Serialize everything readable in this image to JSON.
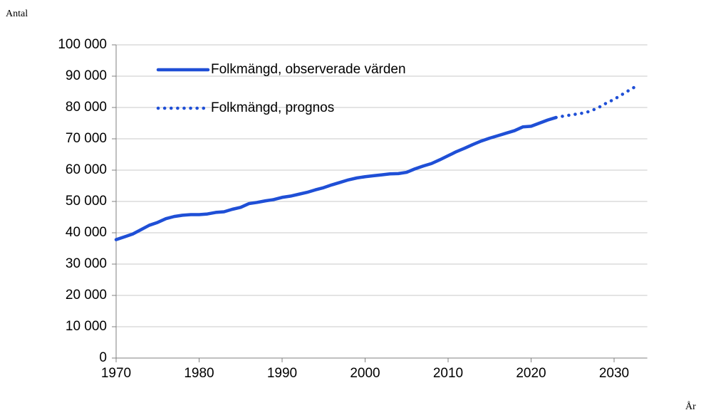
{
  "chart_data": {
    "type": "line",
    "ylabel": "Antal",
    "xlabel": "År",
    "xlim": [
      1970,
      2034
    ],
    "xticks": [
      1970,
      1980,
      1990,
      2000,
      2010,
      2020,
      2030
    ],
    "ylim": [
      0,
      100000
    ],
    "yticks": [
      {
        "value": 0,
        "label": "0"
      },
      {
        "value": 10000,
        "label": "10 000"
      },
      {
        "value": 20000,
        "label": "20 000"
      },
      {
        "value": 30000,
        "label": "30 000"
      },
      {
        "value": 40000,
        "label": "40 000"
      },
      {
        "value": 50000,
        "label": "50 000"
      },
      {
        "value": 60000,
        "label": "60 000"
      },
      {
        "value": 70000,
        "label": "70 000"
      },
      {
        "value": 80000,
        "label": "80 000"
      },
      {
        "value": 90000,
        "label": "90 000"
      },
      {
        "value": 100000,
        "label": "100 000"
      }
    ],
    "grid": true,
    "legend": "upper left",
    "series": [
      {
        "name": "Folkmängd, observerade värden",
        "color": "#1f4fd6",
        "style": "solid",
        "x": [
          1970,
          1971,
          1972,
          1973,
          1974,
          1975,
          1976,
          1977,
          1978,
          1979,
          1980,
          1981,
          1982,
          1983,
          1984,
          1985,
          1986,
          1987,
          1988,
          1989,
          1990,
          1991,
          1992,
          1993,
          1994,
          1995,
          1996,
          1997,
          1998,
          1999,
          2000,
          2001,
          2002,
          2003,
          2004,
          2005,
          2006,
          2007,
          2008,
          2009,
          2010,
          2011,
          2012,
          2013,
          2014,
          2015,
          2016,
          2017,
          2018,
          2019,
          2020,
          2021,
          2022,
          2023
        ],
        "values": [
          37800,
          38700,
          39600,
          41000,
          42400,
          43300,
          44500,
          45200,
          45600,
          45800,
          45800,
          46000,
          46500,
          46700,
          47500,
          48100,
          49300,
          49700,
          50200,
          50600,
          51300,
          51700,
          52300,
          52900,
          53700,
          54400,
          55300,
          56100,
          56900,
          57500,
          57900,
          58200,
          58500,
          58800,
          58900,
          59300,
          60400,
          61300,
          62100,
          63300,
          64600,
          65900,
          67000,
          68200,
          69300,
          70200,
          71000,
          71800,
          72600,
          73800,
          74000,
          75000,
          76000,
          76800
        ]
      },
      {
        "name": "Folkmängd, prognos",
        "color": "#1f4fd6",
        "style": "dotted",
        "x": [
          2023,
          2024,
          2025,
          2026,
          2027,
          2028,
          2029,
          2030,
          2031,
          2032,
          2033
        ],
        "values": [
          76800,
          77300,
          77700,
          78100,
          78700,
          79800,
          81300,
          82600,
          84200,
          85800,
          87300
        ]
      }
    ]
  }
}
